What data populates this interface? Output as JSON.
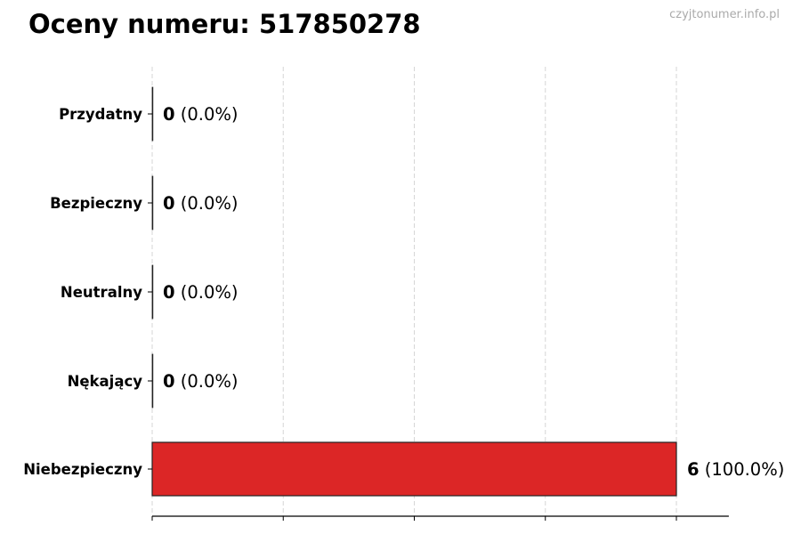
{
  "title": "Oceny numeru: 517850278",
  "watermark": "czyjtonumer.info.pl",
  "chart_data": {
    "type": "bar",
    "orientation": "horizontal",
    "title": "Oceny numeru: 517850278",
    "xlabel": "",
    "ylabel": "",
    "categories": [
      "Przydatny",
      "Bezpieczny",
      "Neutralny",
      "Nękający",
      "Niebezpieczny"
    ],
    "values": [
      0,
      0,
      0,
      0,
      6
    ],
    "data_labels": [
      {
        "count": "0",
        "percent": "(0.0%)"
      },
      {
        "count": "0",
        "percent": "(0.0%)"
      },
      {
        "count": "0",
        "percent": "(0.0%)"
      },
      {
        "count": "0",
        "percent": "(0.0%)"
      },
      {
        "count": "6",
        "percent": "(100.0%)"
      }
    ],
    "xlim": [
      0,
      6.6
    ],
    "x_gridlines": [
      0,
      1.5,
      3,
      4.5,
      6
    ],
    "x_tick_labels_shown": false,
    "grid": "vertical dashed",
    "legend": "none",
    "bar_color": "#dc2626",
    "bar_edge_color": "#222222"
  }
}
